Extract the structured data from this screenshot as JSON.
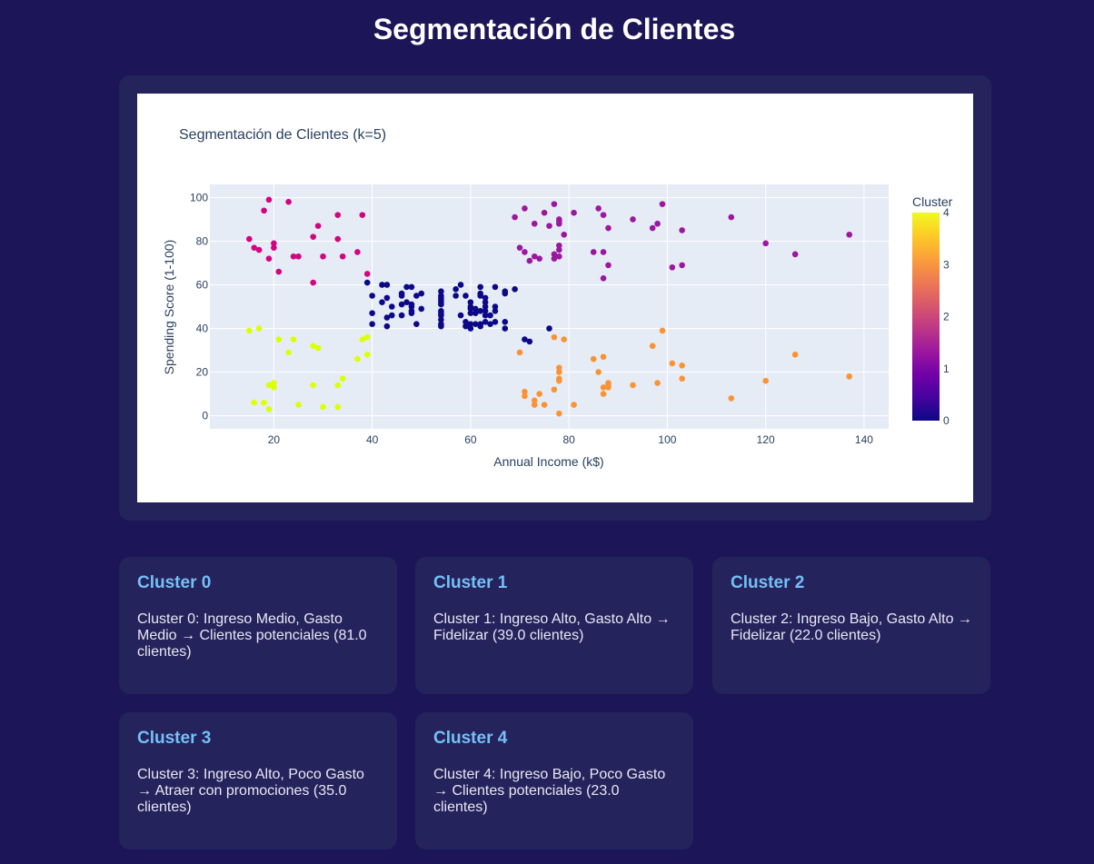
{
  "page": {
    "title": "Segmentación de Clientes"
  },
  "colors": {
    "background": "#1c1557",
    "card": "#25235c",
    "cardTitle": "#74c0f7",
    "plotBg": "#e5ecf6",
    "colorscale": [
      "#0d0887",
      "#46039f",
      "#7201a8",
      "#9c179e",
      "#bd3786",
      "#d8576b",
      "#ed7953",
      "#fb9f3a",
      "#fdca26",
      "#f0f921"
    ]
  },
  "chart_data": {
    "type": "scatter",
    "title": "Segmentación de Clientes (k=5)",
    "xlabel": "Annual Income (k$)",
    "ylabel": "Spending Score (1-100)",
    "xlim": [
      7,
      145
    ],
    "ylim": [
      -6,
      106
    ],
    "xticks": [
      20,
      40,
      60,
      80,
      100,
      120,
      140
    ],
    "yticks": [
      0,
      20,
      40,
      60,
      80,
      100
    ],
    "colorbar": {
      "title": "Cluster",
      "min": 0,
      "max": 4,
      "ticks": [
        0,
        1,
        2,
        3,
        4
      ]
    },
    "series": [
      {
        "name": "Cluster 0",
        "cluster": 0,
        "points": [
          [
            39,
            61
          ],
          [
            40,
            55
          ],
          [
            40,
            47
          ],
          [
            40,
            42
          ],
          [
            42,
            52
          ],
          [
            42,
            60
          ],
          [
            43,
            60
          ],
          [
            43,
            54
          ],
          [
            43,
            45
          ],
          [
            43,
            41
          ],
          [
            44,
            50
          ],
          [
            44,
            46
          ],
          [
            46,
            51
          ],
          [
            46,
            46
          ],
          [
            46,
            56
          ],
          [
            46,
            55
          ],
          [
            47,
            52
          ],
          [
            47,
            59
          ],
          [
            48,
            51
          ],
          [
            48,
            59
          ],
          [
            48,
            50
          ],
          [
            48,
            48
          ],
          [
            48,
            47
          ],
          [
            49,
            55
          ],
          [
            49,
            42
          ],
          [
            50,
            49
          ],
          [
            50,
            56
          ],
          [
            54,
            47
          ],
          [
            54,
            54
          ],
          [
            54,
            53
          ],
          [
            54,
            48
          ],
          [
            54,
            52
          ],
          [
            54,
            42
          ],
          [
            54,
            51
          ],
          [
            54,
            55
          ],
          [
            54,
            41
          ],
          [
            54,
            44
          ],
          [
            54,
            57
          ],
          [
            54,
            46
          ],
          [
            57,
            58
          ],
          [
            57,
            55
          ],
          [
            58,
            60
          ],
          [
            58,
            46
          ],
          [
            59,
            55
          ],
          [
            59,
            41
          ],
          [
            60,
            49
          ],
          [
            60,
            40
          ],
          [
            60,
            42
          ],
          [
            60,
            52
          ],
          [
            60,
            47
          ],
          [
            60,
            50
          ],
          [
            61,
            42
          ],
          [
            61,
            49
          ],
          [
            62,
            41
          ],
          [
            62,
            48
          ],
          [
            62,
            59
          ],
          [
            62,
            55
          ],
          [
            62,
            56
          ],
          [
            62,
            42
          ],
          [
            63,
            50
          ],
          [
            63,
            46
          ],
          [
            63,
            43
          ],
          [
            63,
            48
          ],
          [
            63,
            52
          ],
          [
            63,
            54
          ],
          [
            64,
            42
          ],
          [
            64,
            46
          ],
          [
            65,
            48
          ],
          [
            65,
            50
          ],
          [
            65,
            43
          ],
          [
            65,
            59
          ],
          [
            67,
            43
          ],
          [
            67,
            57
          ],
          [
            67,
            56
          ],
          [
            67,
            40
          ],
          [
            69,
            58
          ],
          [
            71,
            35
          ],
          [
            72,
            34
          ],
          [
            76,
            40
          ],
          [
            61,
            47
          ],
          [
            59,
            43
          ]
        ]
      },
      {
        "name": "Cluster 1",
        "cluster": 1,
        "points": [
          [
            69,
            91
          ],
          [
            70,
            77
          ],
          [
            71,
            95
          ],
          [
            71,
            75
          ],
          [
            72,
            71
          ],
          [
            73,
            88
          ],
          [
            73,
            73
          ],
          [
            74,
            72
          ],
          [
            75,
            93
          ],
          [
            76,
            87
          ],
          [
            77,
            97
          ],
          [
            77,
            74
          ],
          [
            78,
            90
          ],
          [
            78,
            88
          ],
          [
            78,
            76
          ],
          [
            78,
            78
          ],
          [
            78,
            89
          ],
          [
            79,
            83
          ],
          [
            81,
            93
          ],
          [
            85,
            75
          ],
          [
            86,
            95
          ],
          [
            87,
            63
          ],
          [
            87,
            75
          ],
          [
            87,
            92
          ],
          [
            88,
            86
          ],
          [
            88,
            69
          ],
          [
            93,
            90
          ],
          [
            97,
            86
          ],
          [
            98,
            88
          ],
          [
            99,
            97
          ],
          [
            101,
            68
          ],
          [
            103,
            85
          ],
          [
            103,
            69
          ],
          [
            113,
            91
          ],
          [
            120,
            79
          ],
          [
            126,
            74
          ],
          [
            137,
            83
          ],
          [
            77,
            72
          ],
          [
            78,
            73
          ]
        ]
      },
      {
        "name": "Cluster 2",
        "cluster": 2,
        "points": [
          [
            15,
            81
          ],
          [
            16,
            77
          ],
          [
            17,
            76
          ],
          [
            18,
            94
          ],
          [
            19,
            72
          ],
          [
            19,
            99
          ],
          [
            20,
            77
          ],
          [
            20,
            79
          ],
          [
            21,
            66
          ],
          [
            23,
            98
          ],
          [
            24,
            73
          ],
          [
            25,
            73
          ],
          [
            28,
            82
          ],
          [
            28,
            61
          ],
          [
            29,
            87
          ],
          [
            30,
            73
          ],
          [
            33,
            81
          ],
          [
            33,
            92
          ],
          [
            34,
            73
          ],
          [
            37,
            75
          ],
          [
            38,
            92
          ],
          [
            39,
            65
          ]
        ]
      },
      {
        "name": "Cluster 3",
        "cluster": 3,
        "points": [
          [
            70,
            29
          ],
          [
            71,
            11
          ],
          [
            71,
            9
          ],
          [
            73,
            5
          ],
          [
            73,
            7
          ],
          [
            74,
            10
          ],
          [
            75,
            5
          ],
          [
            77,
            12
          ],
          [
            77,
            36
          ],
          [
            78,
            22
          ],
          [
            78,
            17
          ],
          [
            78,
            20
          ],
          [
            78,
            16
          ],
          [
            78,
            1
          ],
          [
            79,
            35
          ],
          [
            81,
            5
          ],
          [
            85,
            26
          ],
          [
            86,
            20
          ],
          [
            87,
            27
          ],
          [
            87,
            13
          ],
          [
            87,
            10
          ],
          [
            88,
            13
          ],
          [
            88,
            15
          ],
          [
            93,
            14
          ],
          [
            97,
            32
          ],
          [
            98,
            15
          ],
          [
            99,
            39
          ],
          [
            101,
            24
          ],
          [
            103,
            17
          ],
          [
            103,
            23
          ],
          [
            113,
            8
          ],
          [
            120,
            16
          ],
          [
            126,
            28
          ],
          [
            137,
            18
          ],
          [
            88,
            14
          ]
        ]
      },
      {
        "name": "Cluster 4",
        "cluster": 4,
        "points": [
          [
            15,
            39
          ],
          [
            16,
            6
          ],
          [
            17,
            40
          ],
          [
            18,
            6
          ],
          [
            19,
            3
          ],
          [
            19,
            14
          ],
          [
            20,
            15
          ],
          [
            20,
            13
          ],
          [
            21,
            35
          ],
          [
            23,
            29
          ],
          [
            24,
            35
          ],
          [
            25,
            5
          ],
          [
            28,
            14
          ],
          [
            28,
            32
          ],
          [
            29,
            31
          ],
          [
            30,
            4
          ],
          [
            33,
            4
          ],
          [
            33,
            14
          ],
          [
            34,
            17
          ],
          [
            37,
            26
          ],
          [
            38,
            35
          ],
          [
            39,
            36
          ],
          [
            39,
            28
          ]
        ]
      }
    ]
  },
  "clusters": [
    {
      "title": "Cluster 0",
      "description": "Cluster 0: Ingreso Medio, Gasto Medio → Clientes potenciales (81.0 clientes)"
    },
    {
      "title": "Cluster 1",
      "description": "Cluster 1: Ingreso Alto, Gasto Alto → Fidelizar (39.0 clientes)"
    },
    {
      "title": "Cluster 2",
      "description": "Cluster 2: Ingreso Bajo, Gasto Alto → Fidelizar (22.0 clientes)"
    },
    {
      "title": "Cluster 3",
      "description": "Cluster 3: Ingreso Alto, Poco Gasto → Atraer con promociones (35.0 clientes)"
    },
    {
      "title": "Cluster 4",
      "description": "Cluster 4: Ingreso Bajo, Poco Gasto → Clientes potenciales (23.0 clientes)"
    }
  ]
}
